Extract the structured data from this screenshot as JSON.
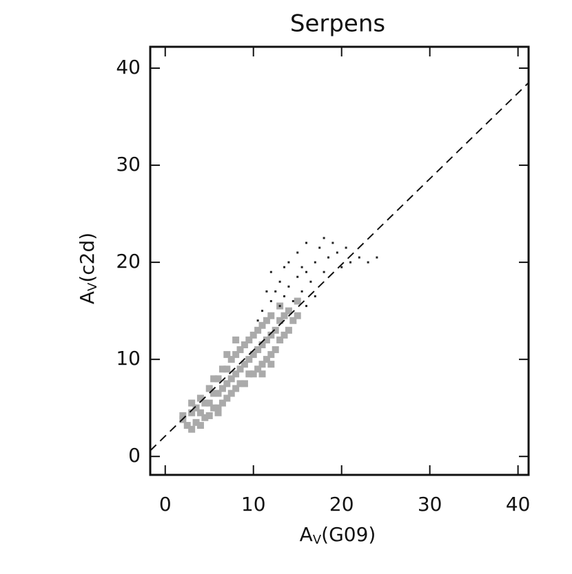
{
  "chart_data": {
    "type": "scatter",
    "title": "Serpens",
    "xlabel": [
      "A",
      "V",
      "(G09)"
    ],
    "ylabel": [
      "A",
      "V",
      "(c2d)"
    ],
    "xlim": [
      -1.7,
      41.2
    ],
    "ylim": [
      -1.9,
      42.2
    ],
    "xticks": [
      0,
      10,
      20,
      30,
      40
    ],
    "yticks": [
      0,
      10,
      20,
      30,
      40
    ],
    "series": [
      {
        "color": "#aaaaaa",
        "x": [
          2,
          2.5,
          3,
          3,
          3.5,
          3.5,
          4,
          4,
          4,
          4.5,
          4.5,
          5,
          5,
          5,
          5.5,
          5.5,
          5.5,
          6,
          6,
          6,
          6.5,
          6.5,
          6.5,
          7,
          7,
          7,
          7.5,
          7.5,
          7.5,
          8,
          8,
          8,
          8.5,
          8.5,
          8.5,
          9,
          9,
          9,
          9.5,
          9.5,
          9.5,
          10,
          10,
          10,
          10.5,
          10.5,
          10.5,
          11,
          11,
          11,
          11.5,
          11.5,
          11.5,
          12,
          12,
          12,
          12.5,
          12.5,
          13,
          13,
          13,
          13.5,
          13.5,
          14,
          14,
          14.5,
          15,
          15,
          8,
          7,
          11,
          12,
          3,
          2,
          6
        ],
        "y": [
          3.8,
          3.2,
          2.8,
          4.5,
          3.5,
          5,
          3.2,
          4.5,
          6,
          4,
          5.5,
          4.2,
          5.5,
          7,
          5,
          6.5,
          8,
          5,
          6.5,
          8,
          5.5,
          7,
          9,
          6,
          7.5,
          9,
          6.5,
          8,
          10,
          7,
          8.5,
          10.5,
          7.5,
          9,
          11,
          7.5,
          9.5,
          11.5,
          8.5,
          10,
          12,
          8.5,
          10.5,
          12.5,
          9,
          11,
          13,
          9.5,
          11.5,
          13.5,
          10,
          12,
          14,
          10.5,
          12.5,
          14.5,
          11,
          13,
          12,
          14,
          15.5,
          12.5,
          14.5,
          13,
          15,
          14,
          14.5,
          16,
          12,
          10.5,
          8.5,
          9.5,
          5.5,
          4.2,
          4.5
        ]
      },
      {
        "color": "#222222",
        "x": [
          12,
          12.5,
          13,
          13,
          13.5,
          14,
          14,
          14.5,
          15,
          15,
          15.5,
          16,
          16,
          16.5,
          17,
          17,
          17.5,
          18,
          18,
          18.5,
          19,
          19.5,
          20,
          20.5,
          21,
          22,
          23,
          24,
          11,
          11.5,
          12,
          13.5,
          10.5,
          15.5,
          16
        ],
        "y": [
          16,
          17,
          15.5,
          18,
          16.5,
          17.5,
          20,
          16,
          18.5,
          21,
          17,
          19,
          22,
          18,
          20,
          16.5,
          21.5,
          19,
          22.5,
          20.5,
          22,
          21,
          19.5,
          21.5,
          20,
          20.5,
          20,
          20.5,
          15,
          17,
          19,
          19.5,
          14,
          19.5,
          15.5
        ]
      }
    ],
    "reference_line": {
      "x": [
        -1.7,
        41.2
      ],
      "y": [
        0.6,
        38.5
      ]
    }
  }
}
